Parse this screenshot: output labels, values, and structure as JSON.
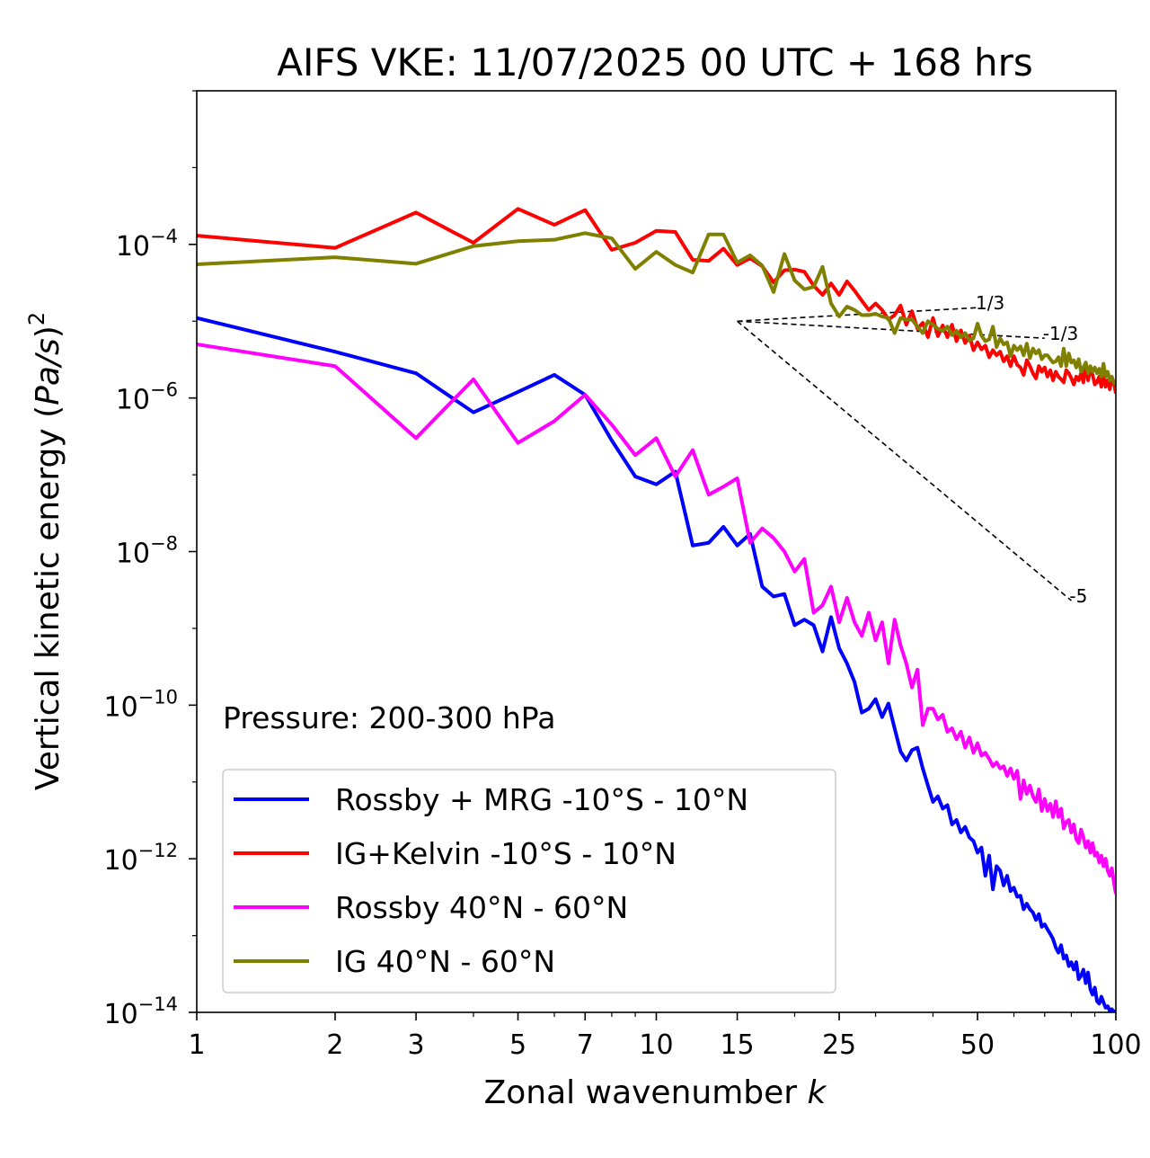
{
  "chart_data": {
    "type": "line",
    "title": "AIFS VKE: 11/07/2025 00 UTC + 168 hrs",
    "xlabel": "Zonal wavenumber",
    "xlabel_var": "k",
    "ylabel_prefix": "Vertical kinetic energy (",
    "ylabel_var": "Pa/s",
    "ylabel_suffix": ")",
    "ylabel_exp": "2",
    "x_scale": "log",
    "y_scale": "log",
    "xlim": [
      1,
      100
    ],
    "ylim": [
      1e-14,
      0.01
    ],
    "x_ticks": [
      1,
      2,
      3,
      5,
      7,
      10,
      15,
      25,
      50,
      100
    ],
    "x_tick_labels": [
      "1",
      "2",
      "3",
      "5",
      "7",
      "10",
      "15",
      "25",
      "50",
      "100"
    ],
    "y_ticks": [
      {
        "value": 1e-14,
        "base": "10",
        "exp": "−14"
      },
      {
        "value": 1e-12,
        "base": "10",
        "exp": "−12"
      },
      {
        "value": 1e-10,
        "base": "10",
        "exp": "−10"
      },
      {
        "value": 1e-08,
        "base": "10",
        "exp": "−8"
      },
      {
        "value": 1e-06,
        "base": "10",
        "exp": "−6"
      },
      {
        "value": 0.0001,
        "base": "10",
        "exp": "−4"
      }
    ],
    "legend_position": "lower-left",
    "annotation": "Pressure: 200-300 hPa",
    "reference_lines": [
      {
        "label": "1/3",
        "from": [
          15,
          1e-05
        ],
        "to": [
          50,
          1.5e-05
        ]
      },
      {
        "label": "-1/3",
        "from": [
          15,
          1e-05
        ],
        "to": [
          70,
          6e-06
        ]
      },
      {
        "label": "-5",
        "from": [
          15,
          1e-05
        ],
        "to": [
          80,
          2.3e-09
        ]
      }
    ],
    "series": [
      {
        "name": "Rossby + MRG -10°S - 10°N",
        "color": "#0000ff",
        "x": [
          1,
          2,
          3,
          4,
          5,
          6,
          7,
          8,
          9,
          10,
          11,
          12,
          13,
          14,
          15,
          16,
          17,
          18,
          19,
          20,
          21,
          22,
          23,
          24,
          25,
          26,
          27,
          28,
          29,
          30,
          31,
          32,
          33,
          34,
          35,
          36,
          37,
          38,
          39,
          40,
          41,
          42,
          43,
          44,
          45,
          46,
          47,
          48,
          49,
          50,
          51,
          52,
          53,
          54,
          55,
          56,
          57,
          58,
          59,
          60,
          61,
          62,
          63,
          64,
          65,
          66,
          67,
          68,
          69,
          70,
          71,
          72,
          73,
          74,
          75,
          76,
          77,
          78,
          79,
          80,
          81,
          82,
          83,
          84,
          85,
          86,
          87,
          88,
          89,
          90,
          91,
          92,
          93,
          94,
          95,
          96,
          97,
          98,
          99,
          100
        ],
        "y": [
          1.1e-05,
          4e-06,
          2.1e-06,
          6.5e-07,
          1.2e-06,
          2e-06,
          1.1e-06,
          2.8e-07,
          9.5e-08,
          7.5e-08,
          1.1e-07,
          1.2e-08,
          1.3e-08,
          2.1e-08,
          1.2e-08,
          1.7e-08,
          3.5e-09,
          2.6e-09,
          2.8e-09,
          1.1e-09,
          1.3e-09,
          1.1e-09,
          5e-10,
          1.4e-09,
          5.5e-10,
          3.5e-10,
          2e-10,
          8e-11,
          9e-11,
          1.2e-10,
          7e-11,
          1.05e-10,
          5e-11,
          2.5e-11,
          1.9e-11,
          2.6e-11,
          2.8e-11,
          1.5e-11,
          9e-12,
          5.5e-12,
          6.5e-12,
          4.5e-12,
          5e-12,
          2.8e-12,
          3.2e-12,
          2.2e-12,
          2.6e-12,
          1.9e-12,
          1.7e-12,
          1.2e-12,
          1.4e-12,
          6e-13,
          1.1e-12,
          4e-13,
          8e-13,
          7e-13,
          4.5e-13,
          6e-13,
          3.8e-13,
          4.2e-13,
          3.2e-13,
          3.3e-13,
          2.2e-13,
          2.6e-13,
          2.2e-13,
          2e-13,
          1.6e-13,
          1.9e-13,
          1.3e-13,
          1.4e-13,
          1.2e-13,
          1.05e-13,
          9e-14,
          7e-14,
          6e-14,
          7.5e-14,
          5e-14,
          5.5e-14,
          4e-14,
          4.5e-14,
          3.6e-14,
          4.5e-14,
          2.7e-14,
          3e-14,
          3.6e-14,
          2.4e-14,
          3.3e-14,
          2e-14,
          1.7e-14,
          2.1e-14,
          1.4e-14,
          1.3e-14,
          1.6e-14,
          1.35e-14,
          1.15e-14,
          1.2e-14,
          1.05e-14,
          1.1e-14,
          1e-14,
          1.05e-14
        ]
      },
      {
        "name": "IG+Kelvin -10°S - 10°N",
        "color": "#ff0000",
        "x": [
          1,
          2,
          3,
          4,
          5,
          6,
          7,
          8,
          9,
          10,
          11,
          12,
          13,
          14,
          15,
          16,
          17,
          18,
          19,
          20,
          21,
          22,
          23,
          24,
          25,
          26,
          27,
          28,
          29,
          30,
          31,
          32,
          33,
          34,
          35,
          36,
          37,
          38,
          39,
          40,
          41,
          42,
          43,
          44,
          45,
          46,
          47,
          48,
          49,
          50,
          51,
          52,
          53,
          54,
          55,
          56,
          57,
          58,
          59,
          60,
          61,
          62,
          63,
          64,
          65,
          66,
          67,
          68,
          69,
          70,
          71,
          72,
          73,
          74,
          75,
          76,
          77,
          78,
          79,
          80,
          81,
          82,
          83,
          84,
          85,
          86,
          87,
          88,
          89,
          90,
          91,
          92,
          93,
          94,
          95,
          96,
          97,
          98,
          99,
          100
        ],
        "y": [
          0.00013,
          9e-05,
          0.00026,
          0.000105,
          0.00029,
          0.00018,
          0.00028,
          8.5e-05,
          0.000105,
          0.00015,
          0.000145,
          6.3e-05,
          6.1e-05,
          8.8e-05,
          5.4e-05,
          6.6e-05,
          5.2e-05,
          3.2e-05,
          4.6e-05,
          4.7e-05,
          4.4e-05,
          2.9e-05,
          2.2e-05,
          3.1e-05,
          2.2e-05,
          3.3e-05,
          2.5e-05,
          1.85e-05,
          1.4e-05,
          1.7e-05,
          1.4e-05,
          1.05e-05,
          1.2e-05,
          1.6e-05,
          9e-06,
          1.35e-05,
          8e-06,
          9.5e-06,
          6.2e-06,
          1.1e-05,
          6.4e-06,
          8.8e-06,
          6.2e-06,
          9e-06,
          5.5e-06,
          7.6e-06,
          5.2e-06,
          6.5e-06,
          4.2e-06,
          5.3e-06,
          4.3e-06,
          4.8e-06,
          3.4e-06,
          4.2e-06,
          3.6e-06,
          4e-06,
          3e-06,
          3.5e-06,
          2.6e-06,
          3.5e-06,
          2.7e-06,
          2.5e-06,
          2e-06,
          3.1e-06,
          2.6e-06,
          2.1e-06,
          1.8e-06,
          2.6e-06,
          2.2e-06,
          2.5e-06,
          1.9e-06,
          2.3e-06,
          1.7e-06,
          2.2e-06,
          1.9e-06,
          1.75e-06,
          1.6e-06,
          2.3e-06,
          2.1e-06,
          1.8e-06,
          1.5e-06,
          1.9e-06,
          1.7e-06,
          2.1e-06,
          1.6e-06,
          2.7e-06,
          1.7e-06,
          2.4e-06,
          2e-06,
          1.5e-06,
          1.6e-06,
          1.9e-06,
          1.4e-06,
          2.1e-06,
          1.4e-06,
          1.7e-06,
          1.3e-06,
          1.8e-06,
          1.6e-06,
          1.15e-06
        ]
      },
      {
        "name": "Rossby 40°N - 60°N",
        "color": "#ff00ff",
        "x": [
          1,
          2,
          3,
          4,
          5,
          6,
          7,
          8,
          9,
          10,
          11,
          12,
          13,
          14,
          15,
          16,
          17,
          18,
          19,
          20,
          21,
          22,
          23,
          24,
          25,
          26,
          27,
          28,
          29,
          30,
          31,
          32,
          33,
          34,
          35,
          36,
          37,
          38,
          39,
          40,
          41,
          42,
          43,
          44,
          45,
          46,
          47,
          48,
          49,
          50,
          51,
          52,
          53,
          54,
          55,
          56,
          57,
          58,
          59,
          60,
          61,
          62,
          63,
          64,
          65,
          66,
          67,
          68,
          69,
          70,
          71,
          72,
          73,
          74,
          75,
          76,
          77,
          78,
          79,
          80,
          81,
          82,
          83,
          84,
          85,
          86,
          87,
          88,
          89,
          90,
          91,
          92,
          93,
          94,
          95,
          96,
          97,
          98,
          99,
          100
        ],
        "y": [
          5e-06,
          2.6e-06,
          3e-07,
          1.75e-06,
          2.6e-07,
          5e-07,
          1.1e-06,
          4.5e-07,
          1.8e-07,
          3e-07,
          9.5e-08,
          2.1e-07,
          5.5e-08,
          7e-08,
          9e-08,
          1.3e-08,
          2e-08,
          1.5e-08,
          1e-08,
          5.5e-09,
          8e-09,
          1.6e-09,
          2e-09,
          3.5e-09,
          1.2e-09,
          2.5e-09,
          1.2e-09,
          8e-10,
          1.6e-09,
          7e-10,
          1.2e-09,
          3.5e-10,
          1.3e-09,
          6e-10,
          3.5e-10,
          1.7e-10,
          2.9e-10,
          5.5e-11,
          9e-11,
          9e-11,
          6.5e-11,
          7.5e-11,
          4.5e-11,
          5e-11,
          3.6e-11,
          4.5e-11,
          2.8e-11,
          3.8e-11,
          2.4e-11,
          3.2e-11,
          2.2e-11,
          2.4e-11,
          2e-11,
          1.6e-11,
          1.8e-11,
          1.5e-11,
          1.6e-11,
          1.2e-11,
          1.5e-11,
          1.1e-11,
          1.4e-11,
          6e-12,
          1.05e-11,
          7e-12,
          9e-12,
          6.5e-12,
          5.5e-12,
          8e-12,
          4.2e-12,
          6e-12,
          4.2e-12,
          5.2e-12,
          3.5e-12,
          5.6e-12,
          3.5e-12,
          4.5e-12,
          2.5e-12,
          3e-12,
          3.2e-12,
          2.2e-12,
          2.8e-12,
          1.8e-12,
          1.6e-12,
          2.4e-12,
          1.9e-12,
          1.4e-12,
          1.7e-12,
          1.2e-12,
          1.6e-12,
          1.1e-12,
          1.2e-12,
          9e-13,
          1.1e-12,
          8e-13,
          1e-12,
          7e-13,
          6e-13,
          7.5e-13,
          5e-13,
          3.5e-13
        ]
      },
      {
        "name": "IG 40°N - 60°N",
        "color": "#808000",
        "x": [
          1,
          2,
          3,
          4,
          5,
          6,
          7,
          8,
          9,
          10,
          11,
          12,
          13,
          14,
          15,
          16,
          17,
          18,
          19,
          20,
          21,
          22,
          23,
          24,
          25,
          26,
          27,
          28,
          29,
          30,
          31,
          32,
          33,
          34,
          35,
          36,
          37,
          38,
          39,
          40,
          41,
          42,
          43,
          44,
          45,
          46,
          47,
          48,
          49,
          50,
          51,
          52,
          53,
          54,
          55,
          56,
          57,
          58,
          59,
          60,
          61,
          62,
          63,
          64,
          65,
          66,
          67,
          68,
          69,
          70,
          71,
          72,
          73,
          74,
          75,
          76,
          77,
          78,
          79,
          80,
          81,
          82,
          83,
          84,
          85,
          86,
          87,
          88,
          89,
          90,
          91,
          92,
          93,
          94,
          95,
          96,
          97,
          98,
          99,
          100
        ],
        "y": [
          5.5e-05,
          6.8e-05,
          5.6e-05,
          9.5e-05,
          0.00011,
          0.000115,
          0.00014,
          0.00012,
          4.8e-05,
          8e-05,
          5.4e-05,
          4.3e-05,
          0.000135,
          0.000135,
          5.8e-05,
          7.2e-05,
          5.3e-05,
          2.4e-05,
          7.5e-05,
          3.4e-05,
          2.6e-05,
          2.8e-05,
          5.1e-05,
          1.7e-05,
          1.15e-05,
          1.55e-05,
          1.4e-05,
          1.2e-05,
          1.2e-05,
          1.25e-05,
          1.15e-05,
          1.1e-05,
          7e-06,
          1.1e-05,
          1.05e-05,
          1.05e-05,
          8.5e-06,
          7e-06,
          1e-05,
          9e-06,
          8e-06,
          7.5e-06,
          8.5e-06,
          6.6e-06,
          7.5e-06,
          6.2e-06,
          7e-06,
          5.6e-06,
          6e-06,
          9.3e-06,
          6.5e-06,
          5.5e-06,
          5.8e-06,
          8.5e-06,
          4.6e-06,
          6e-06,
          5e-06,
          5.3e-06,
          3.5e-06,
          4.8e-06,
          4.2e-06,
          4.7e-06,
          3.6e-06,
          5.1e-06,
          3.3e-06,
          4.4e-06,
          3.8e-06,
          4.2e-06,
          3.2e-06,
          3.6e-06,
          3.6e-06,
          3.2e-06,
          2.9e-06,
          3e-06,
          3.4e-06,
          2.6e-06,
          4.4e-06,
          2.6e-06,
          3.8e-06,
          2.9e-06,
          3.1e-06,
          2.5e-06,
          3.2e-06,
          2.2e-06,
          2.5e-06,
          2.9e-06,
          2.1e-06,
          2.6e-06,
          2.2e-06,
          2.5e-06,
          2.1e-06,
          2.4e-06,
          1.9e-06,
          2.8e-06,
          1.9e-06,
          2.2e-06,
          1.7e-06,
          1.9e-06,
          1.6e-06,
          1.5e-06
        ]
      }
    ]
  }
}
